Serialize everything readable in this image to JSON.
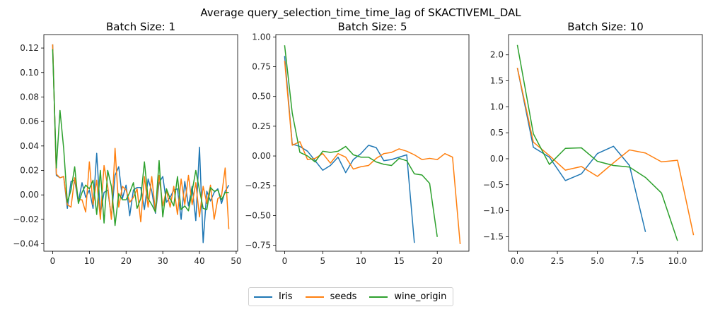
{
  "title": "Average query_selection_time_time_lag of SKACTIVEML_DAL",
  "colors": {
    "Iris": "#1f77b4",
    "seeds": "#ff7f0e",
    "wine_origin": "#2ca02c"
  },
  "legend": [
    "Iris",
    "seeds",
    "wine_origin"
  ],
  "chart_data": [
    {
      "type": "line",
      "title": "Batch Size: 1",
      "xlim": [
        -2.4,
        50.4
      ],
      "ylim": [
        -0.046,
        0.131
      ],
      "xticks": [
        "0",
        "10",
        "20",
        "30",
        "40",
        "50"
      ],
      "xtick_values": [
        0,
        10,
        20,
        30,
        40,
        50
      ],
      "yticks": [
        "−0.04",
        "−0.02",
        "0.00",
        "0.02",
        "0.04",
        "0.06",
        "0.08",
        "0.10",
        "0.12"
      ],
      "ytick_values": [
        -0.04,
        -0.02,
        0.0,
        0.02,
        0.04,
        0.06,
        0.08,
        0.1,
        0.12
      ],
      "x_start": 0,
      "series": [
        {
          "name": "Iris",
          "values": [
            0.123,
            0.016,
            0.014,
            0.015,
            -0.011,
            0.011,
            0.012,
            -0.006,
            0.01,
            -0.002,
            0.004,
            -0.011,
            0.034,
            -0.015,
            0.002,
            0.004,
            -0.018,
            0.016,
            0.023,
            -0.003,
            0.008,
            -0.017,
            0.004,
            0.006,
            0.006,
            -0.012,
            0.013,
            0.003,
            -0.015,
            0.01,
            0.015,
            -0.006,
            -0.002,
            0.004,
            0.005,
            -0.02,
            0.011,
            -0.009,
            0.007,
            -0.021,
            0.039,
            -0.039,
            0.003,
            -0.005,
            0.002,
            0.005,
            -0.007,
            0.003,
            0.008
          ]
        },
        {
          "name": "seeds",
          "values": [
            0.123,
            0.017,
            0.014,
            0.015,
            -0.008,
            -0.01,
            0.014,
            -0.004,
            -0.004,
            -0.014,
            0.027,
            -0.008,
            0.012,
            -0.02,
            0.024,
            0.007,
            -0.02,
            0.038,
            -0.01,
            0.007,
            0.004,
            -0.006,
            -0.002,
            0.005,
            -0.022,
            0.015,
            -0.01,
            0.015,
            -0.014,
            0.016,
            -0.009,
            0.004,
            -0.01,
            0.007,
            -0.016,
            0.013,
            -0.008,
            0.016,
            -0.008,
            0.01,
            -0.018,
            0.007,
            -0.007,
            0.008,
            -0.02,
            -0.003,
            -0.001,
            0.022,
            -0.028
          ]
        },
        {
          "name": "wine_origin",
          "values": [
            0.119,
            0.022,
            0.069,
            0.038,
            -0.006,
            0.004,
            0.023,
            -0.007,
            0.002,
            0.008,
            0.005,
            0.012,
            -0.016,
            0.02,
            -0.023,
            0.02,
            0.007,
            -0.025,
            0.001,
            -0.004,
            -0.004,
            0.002,
            0.01,
            -0.011,
            -0.003,
            0.027,
            -0.003,
            -0.008,
            -0.014,
            0.028,
            -0.018,
            0.005,
            -0.003,
            -0.009,
            0.015,
            -0.012,
            -0.009,
            -0.013,
            0.003,
            0.02,
            0.004,
            -0.011,
            -0.012,
            0.006,
            0.003,
            0.004,
            -0.004,
            0.002,
            0.002
          ]
        }
      ]
    },
    {
      "type": "line",
      "title": "Batch Size: 5",
      "xlim": [
        -1.15,
        24.15
      ],
      "ylim": [
        -0.8,
        1.02
      ],
      "xticks": [
        "0",
        "5",
        "10",
        "15",
        "20"
      ],
      "xtick_values": [
        0,
        5,
        10,
        15,
        20
      ],
      "yticks": [
        "−0.75",
        "−0.50",
        "−0.25",
        "0.00",
        "0.25",
        "0.50",
        "0.75",
        "1.00"
      ],
      "ytick_values": [
        -0.75,
        -0.5,
        -0.25,
        0.0,
        0.25,
        0.5,
        0.75,
        1.0
      ],
      "x_start": 0,
      "series": [
        {
          "name": "Iris",
          "values": [
            0.84,
            0.1,
            0.08,
            0.04,
            -0.04,
            -0.12,
            -0.08,
            -0.01,
            -0.14,
            -0.03,
            0.02,
            0.09,
            0.07,
            -0.04,
            -0.03,
            -0.01,
            0.01,
            -0.73
          ]
        },
        {
          "name": "seeds",
          "values": [
            0.8,
            0.09,
            0.12,
            -0.03,
            -0.02,
            0.02,
            -0.06,
            0.02,
            -0.01,
            -0.11,
            -0.09,
            -0.08,
            -0.02,
            0.02,
            0.03,
            0.06,
            0.04,
            0.01,
            -0.03,
            -0.02,
            -0.03,
            0.02,
            -0.01,
            -0.74
          ]
        },
        {
          "name": "wine_origin",
          "values": [
            0.93,
            0.36,
            0.03,
            0.0,
            -0.05,
            0.04,
            0.03,
            0.04,
            0.08,
            0.01,
            -0.01,
            -0.01,
            -0.05,
            -0.07,
            -0.08,
            -0.02,
            -0.04,
            -0.15,
            -0.16,
            -0.23,
            -0.68
          ]
        }
      ]
    },
    {
      "type": "line",
      "title": "Batch Size: 10",
      "xlim": [
        -0.55,
        11.55
      ],
      "ylim": [
        -1.78,
        2.39
      ],
      "xticks": [
        "0.0",
        "2.5",
        "5.0",
        "7.5",
        "10.0"
      ],
      "xtick_values": [
        0,
        2.5,
        5.0,
        7.5,
        10.0
      ],
      "yticks": [
        "−1.5",
        "−1.0",
        "−0.5",
        "0.0",
        "0.5",
        "1.0",
        "1.5",
        "2.0"
      ],
      "ytick_values": [
        -1.5,
        -1.0,
        -0.5,
        0.0,
        0.5,
        1.0,
        1.5,
        2.0
      ],
      "x_start": 0,
      "series": [
        {
          "name": "Iris",
          "values": [
            1.75,
            0.22,
            0.03,
            -0.42,
            -0.29,
            0.1,
            0.24,
            -0.13,
            -1.41
          ]
        },
        {
          "name": "seeds",
          "values": [
            1.75,
            0.32,
            0.06,
            -0.22,
            -0.15,
            -0.34,
            -0.08,
            0.17,
            0.11,
            -0.06,
            -0.03,
            -1.47
          ]
        },
        {
          "name": "wine_origin",
          "values": [
            2.19,
            0.48,
            -0.11,
            0.2,
            0.21,
            -0.05,
            -0.13,
            -0.16,
            -0.36,
            -0.66,
            -1.58
          ]
        }
      ]
    }
  ]
}
